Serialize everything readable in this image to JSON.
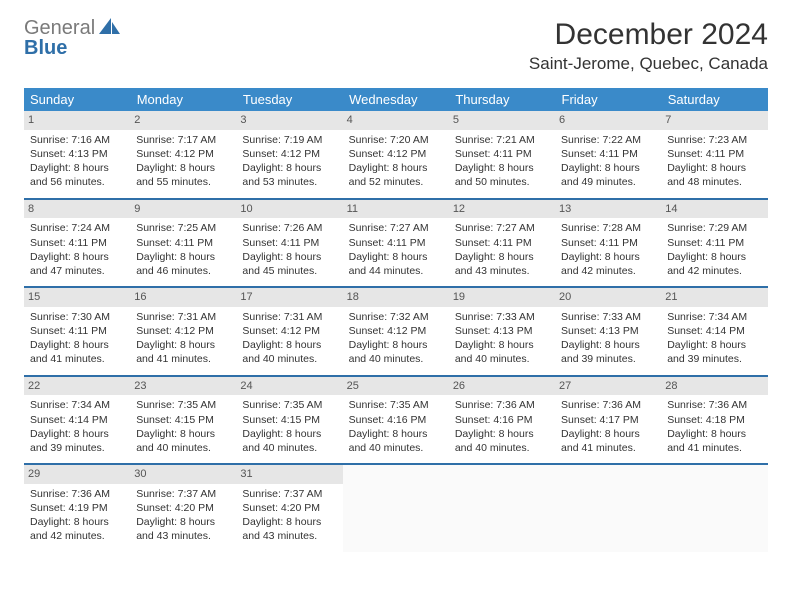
{
  "brand": {
    "text_general": "General",
    "text_blue": "Blue"
  },
  "header": {
    "title": "December 2024",
    "location": "Saint-Jerome, Quebec, Canada"
  },
  "colors": {
    "header_bg": "#3a8ac9",
    "header_text": "#ffffff",
    "row_divider": "#2f6fa8",
    "daynum_bg": "#e6e6e6",
    "text": "#333333",
    "logo_gray": "#7a7a7a",
    "logo_blue": "#2f6fa8"
  },
  "weekdays": [
    "Sunday",
    "Monday",
    "Tuesday",
    "Wednesday",
    "Thursday",
    "Friday",
    "Saturday"
  ],
  "weeks": [
    [
      {
        "n": "1",
        "sr": "Sunrise: 7:16 AM",
        "ss": "Sunset: 4:13 PM",
        "dl": "Daylight: 8 hours and 56 minutes."
      },
      {
        "n": "2",
        "sr": "Sunrise: 7:17 AM",
        "ss": "Sunset: 4:12 PM",
        "dl": "Daylight: 8 hours and 55 minutes."
      },
      {
        "n": "3",
        "sr": "Sunrise: 7:19 AM",
        "ss": "Sunset: 4:12 PM",
        "dl": "Daylight: 8 hours and 53 minutes."
      },
      {
        "n": "4",
        "sr": "Sunrise: 7:20 AM",
        "ss": "Sunset: 4:12 PM",
        "dl": "Daylight: 8 hours and 52 minutes."
      },
      {
        "n": "5",
        "sr": "Sunrise: 7:21 AM",
        "ss": "Sunset: 4:11 PM",
        "dl": "Daylight: 8 hours and 50 minutes."
      },
      {
        "n": "6",
        "sr": "Sunrise: 7:22 AM",
        "ss": "Sunset: 4:11 PM",
        "dl": "Daylight: 8 hours and 49 minutes."
      },
      {
        "n": "7",
        "sr": "Sunrise: 7:23 AM",
        "ss": "Sunset: 4:11 PM",
        "dl": "Daylight: 8 hours and 48 minutes."
      }
    ],
    [
      {
        "n": "8",
        "sr": "Sunrise: 7:24 AM",
        "ss": "Sunset: 4:11 PM",
        "dl": "Daylight: 8 hours and 47 minutes."
      },
      {
        "n": "9",
        "sr": "Sunrise: 7:25 AM",
        "ss": "Sunset: 4:11 PM",
        "dl": "Daylight: 8 hours and 46 minutes."
      },
      {
        "n": "10",
        "sr": "Sunrise: 7:26 AM",
        "ss": "Sunset: 4:11 PM",
        "dl": "Daylight: 8 hours and 45 minutes."
      },
      {
        "n": "11",
        "sr": "Sunrise: 7:27 AM",
        "ss": "Sunset: 4:11 PM",
        "dl": "Daylight: 8 hours and 44 minutes."
      },
      {
        "n": "12",
        "sr": "Sunrise: 7:27 AM",
        "ss": "Sunset: 4:11 PM",
        "dl": "Daylight: 8 hours and 43 minutes."
      },
      {
        "n": "13",
        "sr": "Sunrise: 7:28 AM",
        "ss": "Sunset: 4:11 PM",
        "dl": "Daylight: 8 hours and 42 minutes."
      },
      {
        "n": "14",
        "sr": "Sunrise: 7:29 AM",
        "ss": "Sunset: 4:11 PM",
        "dl": "Daylight: 8 hours and 42 minutes."
      }
    ],
    [
      {
        "n": "15",
        "sr": "Sunrise: 7:30 AM",
        "ss": "Sunset: 4:11 PM",
        "dl": "Daylight: 8 hours and 41 minutes."
      },
      {
        "n": "16",
        "sr": "Sunrise: 7:31 AM",
        "ss": "Sunset: 4:12 PM",
        "dl": "Daylight: 8 hours and 41 minutes."
      },
      {
        "n": "17",
        "sr": "Sunrise: 7:31 AM",
        "ss": "Sunset: 4:12 PM",
        "dl": "Daylight: 8 hours and 40 minutes."
      },
      {
        "n": "18",
        "sr": "Sunrise: 7:32 AM",
        "ss": "Sunset: 4:12 PM",
        "dl": "Daylight: 8 hours and 40 minutes."
      },
      {
        "n": "19",
        "sr": "Sunrise: 7:33 AM",
        "ss": "Sunset: 4:13 PM",
        "dl": "Daylight: 8 hours and 40 minutes."
      },
      {
        "n": "20",
        "sr": "Sunrise: 7:33 AM",
        "ss": "Sunset: 4:13 PM",
        "dl": "Daylight: 8 hours and 39 minutes."
      },
      {
        "n": "21",
        "sr": "Sunrise: 7:34 AM",
        "ss": "Sunset: 4:14 PM",
        "dl": "Daylight: 8 hours and 39 minutes."
      }
    ],
    [
      {
        "n": "22",
        "sr": "Sunrise: 7:34 AM",
        "ss": "Sunset: 4:14 PM",
        "dl": "Daylight: 8 hours and 39 minutes."
      },
      {
        "n": "23",
        "sr": "Sunrise: 7:35 AM",
        "ss": "Sunset: 4:15 PM",
        "dl": "Daylight: 8 hours and 40 minutes."
      },
      {
        "n": "24",
        "sr": "Sunrise: 7:35 AM",
        "ss": "Sunset: 4:15 PM",
        "dl": "Daylight: 8 hours and 40 minutes."
      },
      {
        "n": "25",
        "sr": "Sunrise: 7:35 AM",
        "ss": "Sunset: 4:16 PM",
        "dl": "Daylight: 8 hours and 40 minutes."
      },
      {
        "n": "26",
        "sr": "Sunrise: 7:36 AM",
        "ss": "Sunset: 4:16 PM",
        "dl": "Daylight: 8 hours and 40 minutes."
      },
      {
        "n": "27",
        "sr": "Sunrise: 7:36 AM",
        "ss": "Sunset: 4:17 PM",
        "dl": "Daylight: 8 hours and 41 minutes."
      },
      {
        "n": "28",
        "sr": "Sunrise: 7:36 AM",
        "ss": "Sunset: 4:18 PM",
        "dl": "Daylight: 8 hours and 41 minutes."
      }
    ],
    [
      {
        "n": "29",
        "sr": "Sunrise: 7:36 AM",
        "ss": "Sunset: 4:19 PM",
        "dl": "Daylight: 8 hours and 42 minutes."
      },
      {
        "n": "30",
        "sr": "Sunrise: 7:37 AM",
        "ss": "Sunset: 4:20 PM",
        "dl": "Daylight: 8 hours and 43 minutes."
      },
      {
        "n": "31",
        "sr": "Sunrise: 7:37 AM",
        "ss": "Sunset: 4:20 PM",
        "dl": "Daylight: 8 hours and 43 minutes."
      },
      null,
      null,
      null,
      null
    ]
  ]
}
